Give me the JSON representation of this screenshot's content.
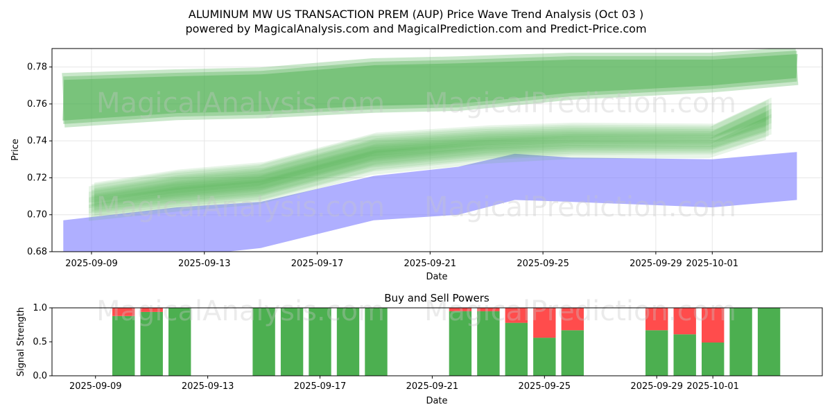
{
  "figure": {
    "title_line1": "ALUMINUM MW US TRANSACTION PREM (AUP) Price Wave Trend Analysis (Oct 03 )",
    "title_line2": "powered by MagicalAnalysis.com and MagicalPrediction.com and Predict-Price.com",
    "watermarks": [
      "MagicalAnalysis.com",
      "MagicalPrediction.com"
    ]
  },
  "chart_data": [
    {
      "type": "area",
      "title": "",
      "xlabel": "Date",
      "ylabel": "Price",
      "ylim": [
        0.68,
        0.79
      ],
      "xlim": [
        "2025-09-07.6",
        "2025-10-04.9"
      ],
      "x_ticks": [
        "2025-09-09",
        "2025-09-13",
        "2025-09-17",
        "2025-09-21",
        "2025-09-25",
        "2025-09-29",
        "2025-10-01"
      ],
      "y_ticks": [
        "0.68",
        "0.70",
        "0.72",
        "0.74",
        "0.76",
        "0.78"
      ],
      "grid": true,
      "colors": {
        "green": "#4caf50",
        "blue": "#7a7aff"
      },
      "bands": [
        {
          "name": "upper green band",
          "color": "green",
          "x": [
            "2025-09-08",
            "2025-09-12",
            "2025-09-15",
            "2025-09-19",
            "2025-09-22",
            "2025-09-26",
            "2025-10-01",
            "2025-10-04"
          ],
          "upper": [
            0.773,
            0.775,
            0.776,
            0.781,
            0.782,
            0.784,
            0.784,
            0.787
          ],
          "lower": [
            0.751,
            0.755,
            0.756,
            0.759,
            0.76,
            0.766,
            0.77,
            0.774
          ]
        },
        {
          "name": "lower blue band",
          "color": "blue",
          "x": [
            "2025-09-08",
            "2025-09-12",
            "2025-09-15",
            "2025-09-19",
            "2025-09-22",
            "2025-09-24",
            "2025-09-26",
            "2025-10-01",
            "2025-10-04"
          ],
          "upper": [
            0.697,
            0.704,
            0.707,
            0.721,
            0.726,
            0.733,
            0.731,
            0.73,
            0.734
          ],
          "lower": [
            0.679,
            0.677,
            0.682,
            0.697,
            0.7,
            0.708,
            0.707,
            0.704,
            0.708
          ]
        },
        {
          "name": "middle green wave bundle",
          "color": "green",
          "x": [
            "2025-09-09",
            "2025-09-12",
            "2025-09-15",
            "2025-09-19",
            "2025-09-23",
            "2025-09-26",
            "2025-10-01",
            "2025-10-03"
          ],
          "center": [
            0.707,
            0.713,
            0.717,
            0.733,
            0.738,
            0.74,
            0.74,
            0.752
          ],
          "spread": [
            0.008,
            0.01,
            0.01,
            0.01,
            0.008,
            0.007,
            0.006,
            0.01
          ]
        }
      ]
    },
    {
      "type": "bar",
      "title": "Buy and Sell Powers",
      "xlabel": "Date",
      "ylabel": "Signal Strength",
      "ylim": [
        0,
        1.0
      ],
      "x_ticks": [
        "2025-09-09",
        "2025-09-13",
        "2025-09-17",
        "2025-09-21",
        "2025-09-25",
        "2025-09-29",
        "2025-10-01"
      ],
      "y_ticks": [
        "0.0",
        "0.5",
        "1.0"
      ],
      "colors": {
        "buy": "#4caf50",
        "sell": "#ff4c4c"
      },
      "categories": [
        "2025-09-10",
        "2025-09-11",
        "2025-09-12",
        "2025-09-15",
        "2025-09-16",
        "2025-09-17",
        "2025-09-18",
        "2025-09-19",
        "2025-09-22",
        "2025-09-23",
        "2025-09-24",
        "2025-09-25",
        "2025-09-26",
        "2025-09-29",
        "2025-09-30",
        "2025-10-01",
        "2025-10-02",
        "2025-10-03"
      ],
      "series": [
        {
          "name": "Buy",
          "values": [
            0.88,
            0.94,
            1.0,
            1.0,
            1.0,
            1.0,
            1.0,
            1.0,
            0.95,
            0.95,
            0.78,
            0.56,
            0.67,
            0.67,
            0.61,
            0.49,
            1.0,
            1.0
          ]
        },
        {
          "name": "Sell",
          "values": [
            0.12,
            0.06,
            0.0,
            0.0,
            0.0,
            0.0,
            0.0,
            0.0,
            0.05,
            0.05,
            0.22,
            0.44,
            0.33,
            0.33,
            0.39,
            0.51,
            0.0,
            0.0
          ]
        }
      ]
    }
  ]
}
